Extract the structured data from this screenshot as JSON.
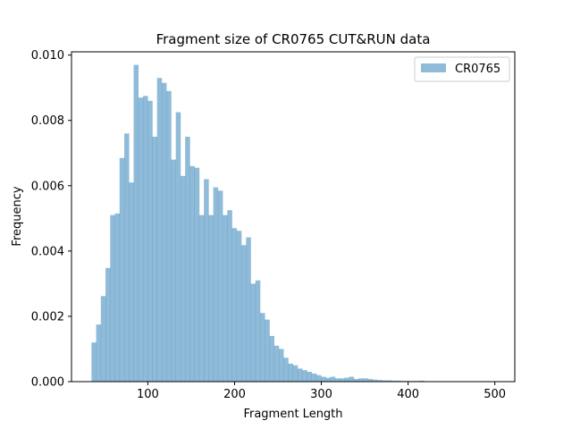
{
  "chart_data": {
    "type": "histogram",
    "title": "Fragment size of CR0765 CUT&RUN data",
    "xlabel": "Fragment Length",
    "ylabel": "Frequency",
    "xlim": [
      12,
      523
    ],
    "ylim": [
      0,
      0.0101
    ],
    "x_ticks": [
      100,
      200,
      300,
      400,
      500
    ],
    "x_tick_labels": [
      "100",
      "200",
      "300",
      "400",
      "500"
    ],
    "y_ticks": [
      0,
      0.002,
      0.004,
      0.006,
      0.008,
      0.01
    ],
    "y_tick_labels": [
      "0.000",
      "0.002",
      "0.004",
      "0.006",
      "0.008",
      "0.010"
    ],
    "legend_position": "top-right",
    "grid": false,
    "series": [
      {
        "name": "CR0765",
        "color": "#1f77b4",
        "opacity": 0.5,
        "bin_start": 35,
        "bin_width": 5.4,
        "values": [
          0.0012,
          0.00175,
          0.00262,
          0.00348,
          0.0051,
          0.00515,
          0.00685,
          0.0076,
          0.0061,
          0.0097,
          0.0087,
          0.00875,
          0.0086,
          0.0075,
          0.0093,
          0.00915,
          0.0089,
          0.0068,
          0.00825,
          0.0063,
          0.0075,
          0.0066,
          0.00655,
          0.0051,
          0.0062,
          0.0051,
          0.00595,
          0.00585,
          0.0051,
          0.00525,
          0.0047,
          0.00462,
          0.00418,
          0.00442,
          0.003,
          0.0031,
          0.0021,
          0.0019,
          0.0014,
          0.0011,
          0.001,
          0.00073,
          0.00055,
          0.0005,
          0.0004,
          0.00035,
          0.0003,
          0.00025,
          0.0002,
          0.00015,
          0.00012,
          0.00015,
          0.0001,
          0.0001,
          0.00012,
          0.00015,
          8e-05,
          0.0001,
          0.0001,
          8e-05,
          6e-05,
          5e-05,
          4e-05,
          4e-05,
          3e-05,
          3e-05,
          2e-05,
          2e-05,
          2e-05,
          2e-05,
          3e-05,
          1e-05,
          1e-05,
          1e-05,
          1e-05,
          1e-05,
          1e-05,
          1e-05,
          1e-05,
          1e-05,
          1e-05,
          1e-05,
          1e-05,
          1e-05,
          1e-05,
          1e-05,
          1e-05,
          1e-05
        ]
      }
    ]
  }
}
